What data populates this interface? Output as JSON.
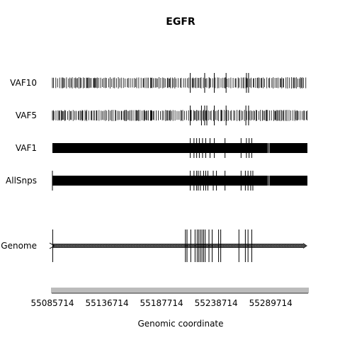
{
  "chart_data": {
    "type": "track",
    "title": "EGFR",
    "xlabel": "Genomic coordinate",
    "xlim": [
      55085714,
      55324000
    ],
    "xticks": [
      55085714,
      55136714,
      55187714,
      55238714,
      55289714
    ],
    "xtick_labels": [
      "55085714",
      "55136714",
      "55187714",
      "55238714",
      "55289714"
    ],
    "tracks": [
      {
        "name": "VAF10",
        "density": "medium",
        "long_marks": [
          55214500,
          55228000,
          55237000,
          55248000,
          55267000,
          55269000
        ]
      },
      {
        "name": "VAF5",
        "density": "medium",
        "long_marks": [
          55214500,
          55225000,
          55228000,
          55230000,
          55237000,
          55248000,
          55266500,
          55269000
        ]
      },
      {
        "name": "VAF1",
        "density": "high",
        "long_marks": [
          55214500,
          55218000,
          55220500,
          55223000,
          55226000,
          55229000,
          55233000,
          55237000,
          55247000,
          55262000,
          55267000,
          55269500,
          55272000
        ]
      },
      {
        "name": "AllSnps",
        "density": "high",
        "long_marks": [
          55214500,
          55218000,
          55220500,
          55222000,
          55224000,
          55227000,
          55229000,
          55231000,
          55236000,
          55239000,
          55247000,
          55262000,
          55266000,
          55268500,
          55271000,
          55273000
        ]
      }
    ],
    "genome": {
      "name": "Genome",
      "start": 55085714,
      "end": 55324000,
      "strand": "+",
      "exons": [
        55086000,
        55210000,
        55211500,
        55215000,
        55219000,
        55221000,
        55222500,
        55224000,
        55225500,
        55227000,
        55228500,
        55232000,
        55235000,
        55241000,
        55243000,
        55260000,
        55266000,
        55268500,
        55272000
      ]
    }
  }
}
